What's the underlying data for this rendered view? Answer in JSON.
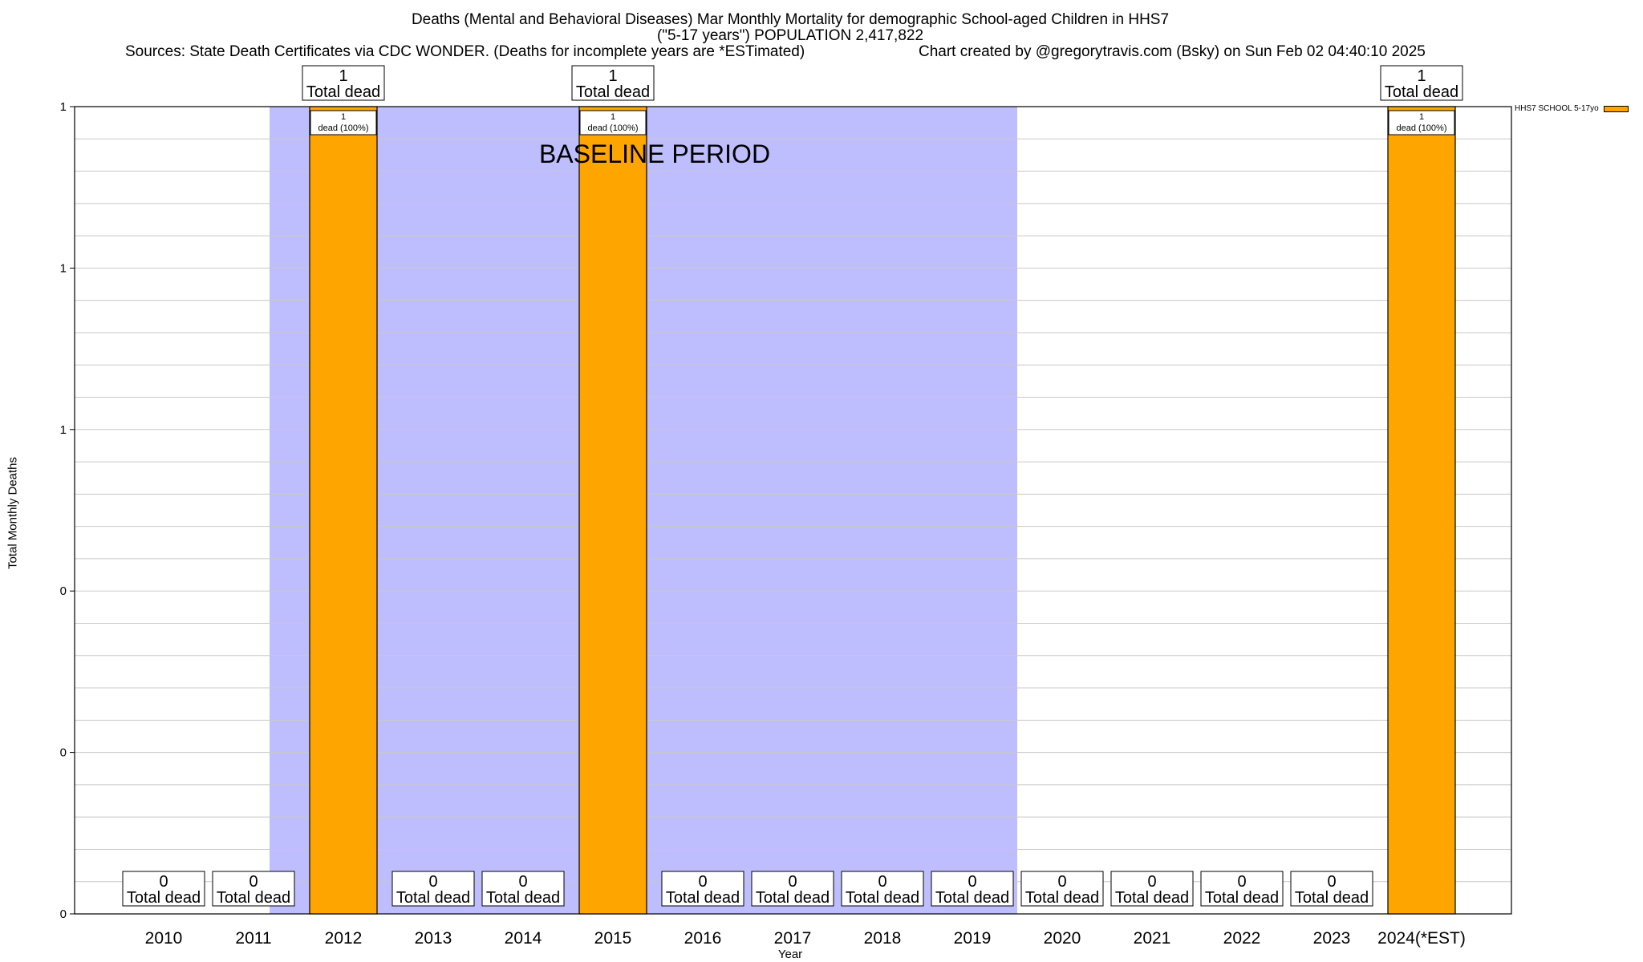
{
  "header": {
    "title_line1": "Deaths (Mental and Behavioral Diseases) Mar Monthly Mortality for demographic School-aged Children in HHS7",
    "title_line2": "(\"5-17 years\") POPULATION 2,417,822",
    "sources": "Sources: State Death Certificates via CDC WONDER. (Deaths for incomplete years are *ESTimated)",
    "credit": "Chart created by @gregorytravis.com (Bsky) on Sun Feb 02 04:40:10 2025"
  },
  "chart_data": {
    "type": "bar",
    "xlabel": "Year",
    "ylabel": "Total Monthly Deaths",
    "categories": [
      "2010",
      "2011",
      "2012",
      "2013",
      "2014",
      "2015",
      "2016",
      "2017",
      "2018",
      "2019",
      "2020",
      "2021",
      "2022",
      "2023",
      "2024(*EST)"
    ],
    "series": [
      {
        "name": "HHS7 SCHOOL 5-17yo",
        "color": "#FFA500",
        "values": [
          0,
          0,
          1,
          0,
          0,
          1,
          0,
          0,
          0,
          0,
          0,
          0,
          0,
          0,
          1
        ]
      }
    ],
    "total_labels": [
      "0\nTotal dead",
      "0\nTotal dead",
      "1\nTotal dead",
      "0\nTotal dead",
      "0\nTotal dead",
      "1\nTotal dead",
      "0\nTotal dead",
      "0\nTotal dead",
      "0\nTotal dead",
      "0\nTotal dead",
      "0\nTotal dead",
      "0\nTotal dead",
      "0\nTotal dead",
      "0\nTotal dead",
      "1\nTotal dead"
    ],
    "bar_labels": [
      "",
      "",
      "1\ndead (100%)",
      "",
      "",
      "1\ndead (100%)",
      "",
      "",
      "",
      "",
      "",
      "",
      "",
      "",
      "1\ndead (100%)"
    ],
    "ylim": [
      0,
      1
    ],
    "yticks": [
      0,
      0.2,
      0.4,
      0.6,
      0.8,
      1.0
    ],
    "ytick_labels": [
      "0",
      "0",
      "0",
      "1",
      "1",
      "1"
    ],
    "baseline_period": {
      "label": "BASELINE PERIOD",
      "start_category": "2012",
      "end_category": "2019",
      "color": "#BEBEFF"
    },
    "grid": true,
    "legend_position": "top-right"
  }
}
